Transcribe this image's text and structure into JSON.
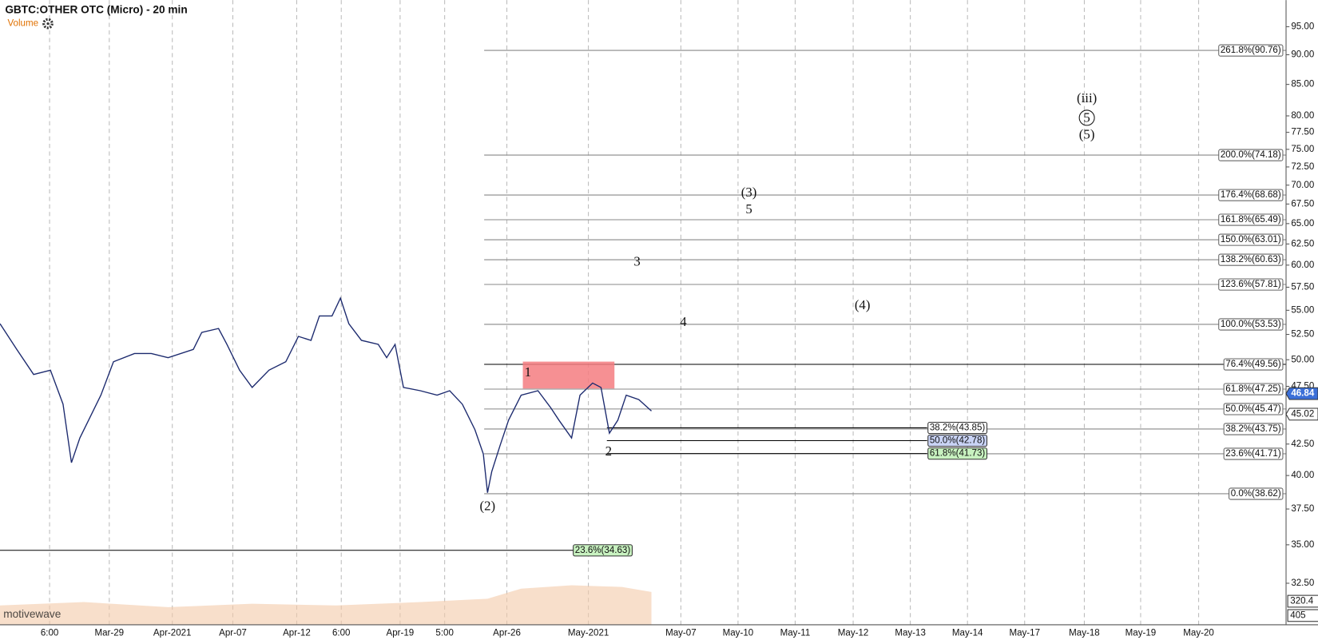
{
  "header": {
    "title": "GBTC:OTHER OTC (Micro) - 20 min",
    "indicator": "Volume",
    "watermark": "motivewave"
  },
  "chart_data": {
    "type": "line",
    "log_scale": true,
    "grid": true,
    "ylim": [
      30,
      100
    ],
    "yticks": [
      {
        "value": 32.5,
        "label": "32.50"
      },
      {
        "value": 35,
        "label": "35.00"
      },
      {
        "value": 37.5,
        "label": "37.50"
      },
      {
        "value": 40,
        "label": "40.00"
      },
      {
        "value": 42.5,
        "label": "42.50"
      },
      {
        "value": 45,
        "label": "45.00"
      },
      {
        "value": 47.5,
        "label": "47.50"
      },
      {
        "value": 50,
        "label": "50.00"
      },
      {
        "value": 52.5,
        "label": "52.50"
      },
      {
        "value": 55,
        "label": "55.00"
      },
      {
        "value": 57.5,
        "label": "57.50"
      },
      {
        "value": 60,
        "label": "60.00"
      },
      {
        "value": 62.5,
        "label": "62.50"
      },
      {
        "value": 65,
        "label": "65.00"
      },
      {
        "value": 67.5,
        "label": "67.50"
      },
      {
        "value": 70,
        "label": "70.00"
      },
      {
        "value": 72.5,
        "label": "72.50"
      },
      {
        "value": 75,
        "label": "75.00"
      },
      {
        "value": 77.5,
        "label": "77.50"
      },
      {
        "value": 80,
        "label": "80.00"
      },
      {
        "value": 85,
        "label": "85.00"
      },
      {
        "value": 90,
        "label": "90.00"
      },
      {
        "value": 95,
        "label": "95.00"
      }
    ],
    "xlim": [
      0,
      153
    ],
    "xticks": [
      {
        "value": 5.9,
        "label": "6:00"
      },
      {
        "value": 13.0,
        "label": "Mar-29"
      },
      {
        "value": 20.5,
        "label": "Apr-2021"
      },
      {
        "value": 27.7,
        "label": "Apr-07"
      },
      {
        "value": 35.3,
        "label": "Apr-12"
      },
      {
        "value": 40.6,
        "label": "6:00"
      },
      {
        "value": 47.6,
        "label": "Apr-19"
      },
      {
        "value": 52.9,
        "label": "5:00"
      },
      {
        "value": 60.3,
        "label": "Apr-26"
      },
      {
        "value": 70.0,
        "label": "May-2021"
      },
      {
        "value": 81.0,
        "label": "May-07"
      },
      {
        "value": 87.8,
        "label": "May-10"
      },
      {
        "value": 94.6,
        "label": "May-11"
      },
      {
        "value": 101.5,
        "label": "May-12"
      },
      {
        "value": 108.3,
        "label": "May-13"
      },
      {
        "value": 115.1,
        "label": "May-14"
      },
      {
        "value": 121.9,
        "label": "May-17"
      },
      {
        "value": 129.0,
        "label": "May-18"
      },
      {
        "value": 135.7,
        "label": "May-19"
      },
      {
        "value": 142.6,
        "label": "May-20"
      }
    ],
    "series": [
      {
        "color": "#1c2a6e",
        "x": [
          0,
          2,
          4,
          6,
          7.5,
          8.5,
          9.5,
          12,
          13.5,
          16,
          18,
          20,
          23,
          24,
          26,
          27,
          28.5,
          30,
          32,
          34,
          35.5,
          37,
          38,
          39.5,
          40.5,
          41.5,
          43,
          45,
          46,
          47,
          48,
          50,
          52,
          53.5,
          55,
          56.5,
          57.5,
          58,
          58.5,
          59.5,
          60.5,
          62,
          64,
          65.5,
          66.5,
          68,
          69,
          70.5,
          71.5,
          72.5,
          73.5,
          74.5,
          76,
          77.5
        ],
        "values": [
          53.6,
          51.0,
          48.6,
          49.0,
          45.9,
          41.0,
          43.0,
          46.7,
          49.8,
          50.6,
          50.6,
          50.2,
          51.0,
          52.7,
          53.1,
          51.5,
          49.0,
          47.4,
          49.0,
          49.8,
          52.3,
          51.9,
          54.4,
          54.4,
          56.3,
          53.6,
          51.9,
          51.5,
          50.2,
          51.5,
          47.4,
          47.1,
          46.7,
          47.1,
          45.9,
          43.7,
          41.7,
          38.7,
          40.3,
          42.4,
          44.5,
          46.7,
          47.1,
          45.6,
          44.5,
          43.0,
          46.7,
          47.8,
          47.4,
          43.4,
          44.5,
          46.7,
          46.3,
          45.3
        ]
      }
    ]
  },
  "retracements": [
    {
      "label": "261.8%(90.76)",
      "value": 90.76
    },
    {
      "label": "200.0%(74.18)",
      "value": 74.18
    },
    {
      "label": "176.4%(68.68)",
      "value": 68.68
    },
    {
      "label": "161.8%(65.49)",
      "value": 65.49
    },
    {
      "label": "150.0%(63.01)",
      "value": 63.01
    },
    {
      "label": "138.2%(60.63)",
      "value": 60.63
    },
    {
      "label": "123.6%(57.81)",
      "value": 57.81
    },
    {
      "label": "100.0%(53.53)",
      "value": 53.53
    },
    {
      "label": "76.4%(49.56)",
      "value": 49.56
    },
    {
      "label": "61.8%(47.25)",
      "value": 47.25
    },
    {
      "label": "50.0%(45.47)",
      "value": 45.47
    },
    {
      "label": "38.2%(43.75)",
      "value": 43.75
    },
    {
      "label": "23.6%(41.71)",
      "value": 41.71
    },
    {
      "label": "0.0%(38.62)",
      "value": 38.62
    }
  ],
  "inner_retracements": [
    {
      "label": "38.2%(43.85)",
      "value": 43.85,
      "color": "#ffffff"
    },
    {
      "label": "50.0%(42.78)",
      "value": 42.78,
      "color": "#c9d3f5"
    },
    {
      "label": "61.8%(41.73)",
      "value": 41.73,
      "color": "#c8f2c0"
    }
  ],
  "long_retracement": {
    "label": "23.6%(34.63)",
    "value": 34.63,
    "color": "#c8f2c0"
  },
  "price_markers": [
    {
      "value": 46.84,
      "color": "#3b6fd8"
    },
    {
      "value": 45.02,
      "color": "#ffffff"
    }
  ],
  "volume_labels": [
    "320.4",
    "405"
  ],
  "wave_labels": [
    "(iii)",
    "5",
    "(5)",
    "(3)",
    "5",
    "3",
    "4",
    "(4)",
    "1",
    "2",
    "(2)"
  ]
}
